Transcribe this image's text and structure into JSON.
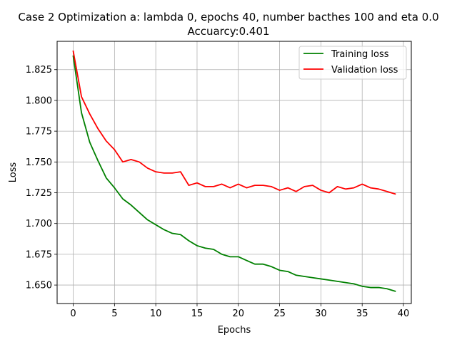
{
  "chart_data": {
    "type": "line",
    "title_line1": "Case 2 Optimization a: lambda 0, epochs 40, number bacthes 100 and eta 0.0",
    "title_line2": "Accuarcy:0.401",
    "xlabel": "Epochs",
    "ylabel": "Loss",
    "xlim": [
      -1.95,
      40.95
    ],
    "ylim": [
      1.635,
      1.848
    ],
    "xticks": [
      0,
      5,
      10,
      15,
      20,
      25,
      30,
      35,
      40
    ],
    "xtick_labels": [
      "0",
      "5",
      "10",
      "15",
      "20",
      "25",
      "30",
      "35",
      "40"
    ],
    "yticks": [
      1.65,
      1.675,
      1.7,
      1.725,
      1.75,
      1.775,
      1.8,
      1.825
    ],
    "ytick_labels": [
      "1.650",
      "1.675",
      "1.700",
      "1.725",
      "1.750",
      "1.775",
      "1.800",
      "1.825"
    ],
    "grid": true,
    "legend_position": "top-right",
    "x": [
      0,
      1,
      2,
      3,
      4,
      5,
      6,
      7,
      8,
      9,
      10,
      11,
      12,
      13,
      14,
      15,
      16,
      17,
      18,
      19,
      20,
      21,
      22,
      23,
      24,
      25,
      26,
      27,
      28,
      29,
      30,
      31,
      32,
      33,
      34,
      35,
      36,
      37,
      38,
      39
    ],
    "series": [
      {
        "name": "Training loss",
        "color": "#008000",
        "values": [
          1.836,
          1.79,
          1.766,
          1.751,
          1.737,
          1.729,
          1.72,
          1.715,
          1.709,
          1.703,
          1.699,
          1.695,
          1.692,
          1.691,
          1.686,
          1.682,
          1.68,
          1.679,
          1.675,
          1.673,
          1.673,
          1.67,
          1.667,
          1.667,
          1.665,
          1.662,
          1.661,
          1.658,
          1.657,
          1.656,
          1.655,
          1.654,
          1.653,
          1.652,
          1.651,
          1.649,
          1.648,
          1.648,
          1.647,
          1.645
        ]
      },
      {
        "name": "Validation loss",
        "color": "#ff0000",
        "values": [
          1.84,
          1.803,
          1.789,
          1.777,
          1.767,
          1.76,
          1.75,
          1.752,
          1.75,
          1.745,
          1.742,
          1.741,
          1.741,
          1.742,
          1.731,
          1.733,
          1.73,
          1.73,
          1.732,
          1.729,
          1.732,
          1.729,
          1.731,
          1.731,
          1.73,
          1.727,
          1.729,
          1.726,
          1.73,
          1.731,
          1.727,
          1.725,
          1.73,
          1.728,
          1.729,
          1.732,
          1.729,
          1.728,
          1.726,
          1.724
        ]
      }
    ]
  }
}
